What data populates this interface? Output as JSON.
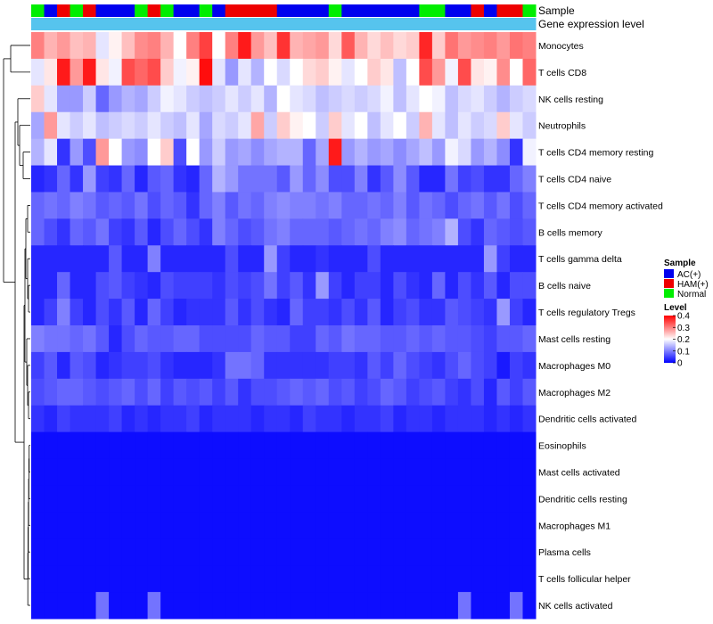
{
  "chart_data": {
    "type": "heatmap",
    "title": "",
    "annotation_labels": {
      "sample": "Sample",
      "gene": "Gene expression level"
    },
    "row_labels": [
      "Monocytes",
      "T cells CD8",
      "NK cells resting",
      "Neutrophils",
      "T cells CD4 memory resting",
      "T cells CD4 naive",
      "T cells CD4 memory activated",
      "B cells memory",
      "T cells gamma delta",
      "B cells naive",
      "T cells regulatory  Tregs",
      "Mast cells resting",
      "Macrophages M0",
      "Macrophages M2",
      "Dendritic cells activated",
      "Eosinophils",
      "Mast cells activated",
      "Dendritic cells resting",
      "Macrophages M1",
      "Plasma cells",
      "T cells follicular helper",
      "NK cells activated"
    ],
    "sample_groups": [
      "Normal",
      "AC(+)",
      "HAM(+)",
      "Normal",
      "HAM(+)",
      "AC(+)",
      "AC(+)",
      "AC(+)",
      "Normal",
      "HAM(+)",
      "Normal",
      "AC(+)",
      "AC(+)",
      "Normal",
      "AC(+)",
      "HAM(+)",
      "HAM(+)",
      "HAM(+)",
      "HAM(+)",
      "AC(+)",
      "AC(+)",
      "AC(+)",
      "AC(+)",
      "Normal",
      "AC(+)",
      "AC(+)",
      "AC(+)",
      "AC(+)",
      "AC(+)",
      "AC(+)",
      "Normal",
      "Normal",
      "AC(+)",
      "AC(+)",
      "HAM(+)",
      "AC(+)",
      "HAM(+)",
      "HAM(+)",
      "Normal"
    ],
    "gene_expression_level": [
      0.35,
      0.35,
      0.35,
      0.35,
      0.35,
      0.35,
      0.35,
      0.35,
      0.35,
      0.35,
      0.35,
      0.35,
      0.35,
      0.35,
      0.35,
      0.35,
      0.35,
      0.35,
      0.35,
      0.35,
      0.35,
      0.35,
      0.35,
      0.35,
      0.35,
      0.35,
      0.35,
      0.35,
      0.35,
      0.35,
      0.35,
      0.35,
      0.35,
      0.35,
      0.35,
      0.35,
      0.35,
      0.35,
      0.35
    ],
    "values": [
      [
        0.3,
        0.26,
        0.28,
        0.25,
        0.26,
        0.18,
        0.21,
        0.25,
        0.29,
        0.3,
        0.26,
        0.2,
        0.3,
        0.35,
        0.2,
        0.3,
        0.38,
        0.28,
        0.25,
        0.36,
        0.26,
        0.27,
        0.28,
        0.23,
        0.33,
        0.26,
        0.23,
        0.25,
        0.23,
        0.24,
        0.37,
        0.24,
        0.31,
        0.28,
        0.29,
        0.3,
        0.28,
        0.31,
        0.3
      ],
      [
        0.18,
        0.22,
        0.38,
        0.28,
        0.38,
        0.22,
        0.19,
        0.34,
        0.32,
        0.34,
        0.24,
        0.19,
        0.21,
        0.39,
        0.18,
        0.12,
        0.18,
        0.14,
        0.2,
        0.17,
        0.2,
        0.23,
        0.24,
        0.21,
        0.18,
        0.2,
        0.24,
        0.22,
        0.15,
        0.2,
        0.34,
        0.28,
        0.19,
        0.34,
        0.22,
        0.21,
        0.29,
        0.2,
        0.32
      ],
      [
        0.24,
        0.18,
        0.12,
        0.12,
        0.16,
        0.08,
        0.12,
        0.14,
        0.13,
        0.16,
        0.19,
        0.18,
        0.16,
        0.15,
        0.16,
        0.18,
        0.16,
        0.18,
        0.14,
        0.2,
        0.18,
        0.17,
        0.15,
        0.16,
        0.17,
        0.16,
        0.17,
        0.19,
        0.15,
        0.18,
        0.2,
        0.19,
        0.15,
        0.17,
        0.18,
        0.16,
        0.14,
        0.16,
        0.17
      ],
      [
        0.13,
        0.28,
        0.18,
        0.16,
        0.18,
        0.15,
        0.16,
        0.17,
        0.16,
        0.18,
        0.16,
        0.15,
        0.18,
        0.13,
        0.17,
        0.16,
        0.18,
        0.27,
        0.16,
        0.24,
        0.21,
        0.2,
        0.16,
        0.24,
        0.18,
        0.2,
        0.15,
        0.18,
        0.2,
        0.16,
        0.26,
        0.18,
        0.15,
        0.18,
        0.16,
        0.17,
        0.24,
        0.18,
        0.16
      ],
      [
        0.14,
        0.18,
        0.04,
        0.12,
        0.06,
        0.28,
        0.2,
        0.12,
        0.11,
        0.2,
        0.24,
        0.06,
        0.2,
        0.12,
        0.16,
        0.12,
        0.13,
        0.11,
        0.13,
        0.14,
        0.14,
        0.08,
        0.13,
        0.38,
        0.12,
        0.14,
        0.12,
        0.13,
        0.11,
        0.13,
        0.15,
        0.12,
        0.19,
        0.17,
        0.12,
        0.14,
        0.11,
        0.04,
        0.19
      ],
      [
        0.03,
        0.04,
        0.08,
        0.04,
        0.12,
        0.05,
        0.04,
        0.08,
        0.03,
        0.07,
        0.08,
        0.04,
        0.03,
        0.08,
        0.14,
        0.12,
        0.09,
        0.09,
        0.09,
        0.07,
        0.12,
        0.08,
        0.11,
        0.06,
        0.06,
        0.1,
        0.04,
        0.07,
        0.11,
        0.07,
        0.03,
        0.03,
        0.09,
        0.05,
        0.06,
        0.04,
        0.04,
        0.08,
        0.1
      ],
      [
        0.08,
        0.09,
        0.08,
        0.1,
        0.09,
        0.07,
        0.08,
        0.07,
        0.09,
        0.06,
        0.08,
        0.07,
        0.04,
        0.08,
        0.1,
        0.07,
        0.09,
        0.08,
        0.1,
        0.11,
        0.1,
        0.1,
        0.09,
        0.1,
        0.08,
        0.08,
        0.09,
        0.08,
        0.1,
        0.07,
        0.09,
        0.08,
        0.06,
        0.08,
        0.09,
        0.07,
        0.09,
        0.06,
        0.08
      ],
      [
        0.08,
        0.06,
        0.04,
        0.08,
        0.07,
        0.09,
        0.05,
        0.04,
        0.07,
        0.03,
        0.06,
        0.08,
        0.06,
        0.04,
        0.1,
        0.08,
        0.06,
        0.07,
        0.09,
        0.1,
        0.08,
        0.08,
        0.08,
        0.07,
        0.08,
        0.09,
        0.08,
        0.1,
        0.11,
        0.08,
        0.09,
        0.1,
        0.14,
        0.06,
        0.04,
        0.08,
        0.07,
        0.06,
        0.07
      ],
      [
        0.03,
        0.03,
        0.03,
        0.03,
        0.03,
        0.03,
        0.07,
        0.03,
        0.03,
        0.1,
        0.03,
        0.03,
        0.03,
        0.03,
        0.03,
        0.06,
        0.03,
        0.03,
        0.12,
        0.05,
        0.03,
        0.03,
        0.04,
        0.03,
        0.03,
        0.03,
        0.06,
        0.03,
        0.03,
        0.03,
        0.03,
        0.03,
        0.03,
        0.03,
        0.03,
        0.12,
        0.05,
        0.03,
        0.03
      ],
      [
        0.03,
        0.03,
        0.08,
        0.03,
        0.03,
        0.06,
        0.07,
        0.05,
        0.04,
        0.03,
        0.06,
        0.05,
        0.05,
        0.05,
        0.04,
        0.06,
        0.05,
        0.06,
        0.09,
        0.05,
        0.07,
        0.04,
        0.12,
        0.05,
        0.03,
        0.05,
        0.05,
        0.03,
        0.06,
        0.04,
        0.03,
        0.08,
        0.03,
        0.06,
        0.04,
        0.07,
        0.03,
        0.06,
        0.06
      ],
      [
        0.03,
        0.05,
        0.1,
        0.05,
        0.03,
        0.06,
        0.04,
        0.07,
        0.03,
        0.08,
        0.05,
        0.03,
        0.04,
        0.04,
        0.04,
        0.07,
        0.04,
        0.06,
        0.04,
        0.03,
        0.08,
        0.05,
        0.05,
        0.04,
        0.06,
        0.04,
        0.07,
        0.03,
        0.05,
        0.06,
        0.04,
        0.04,
        0.07,
        0.06,
        0.05,
        0.04,
        0.12,
        0.05,
        0.03
      ],
      [
        0.1,
        0.09,
        0.09,
        0.08,
        0.09,
        0.07,
        0.03,
        0.06,
        0.08,
        0.07,
        0.07,
        0.08,
        0.08,
        0.06,
        0.06,
        0.06,
        0.06,
        0.08,
        0.07,
        0.07,
        0.05,
        0.05,
        0.08,
        0.07,
        0.09,
        0.08,
        0.08,
        0.07,
        0.07,
        0.08,
        0.07,
        0.08,
        0.07,
        0.07,
        0.06,
        0.05,
        0.07,
        0.07,
        0.08
      ],
      [
        0.05,
        0.07,
        0.03,
        0.07,
        0.06,
        0.03,
        0.04,
        0.05,
        0.05,
        0.06,
        0.04,
        0.03,
        0.03,
        0.03,
        0.04,
        0.09,
        0.09,
        0.08,
        0.04,
        0.04,
        0.04,
        0.04,
        0.04,
        0.05,
        0.05,
        0.04,
        0.07,
        0.05,
        0.08,
        0.06,
        0.05,
        0.04,
        0.06,
        0.08,
        0.06,
        0.05,
        0.02,
        0.05,
        0.04
      ],
      [
        0.06,
        0.07,
        0.08,
        0.08,
        0.07,
        0.06,
        0.07,
        0.08,
        0.06,
        0.08,
        0.05,
        0.07,
        0.06,
        0.07,
        0.05,
        0.07,
        0.04,
        0.06,
        0.06,
        0.07,
        0.08,
        0.07,
        0.08,
        0.06,
        0.07,
        0.05,
        0.06,
        0.08,
        0.07,
        0.05,
        0.06,
        0.07,
        0.05,
        0.04,
        0.06,
        0.03,
        0.07,
        0.05,
        0.07
      ],
      [
        0.04,
        0.03,
        0.05,
        0.04,
        0.04,
        0.04,
        0.05,
        0.03,
        0.04,
        0.03,
        0.04,
        0.04,
        0.05,
        0.03,
        0.04,
        0.04,
        0.04,
        0.03,
        0.04,
        0.04,
        0.03,
        0.05,
        0.04,
        0.04,
        0.03,
        0.04,
        0.04,
        0.05,
        0.03,
        0.04,
        0.04,
        0.03,
        0.04,
        0.04,
        0.04,
        0.03,
        0.04,
        0.03,
        0.04
      ],
      [
        0.01,
        0.01,
        0.01,
        0.01,
        0.01,
        0.01,
        0.01,
        0.01,
        0.01,
        0.01,
        0.01,
        0.01,
        0.01,
        0.01,
        0.01,
        0.01,
        0.01,
        0.01,
        0.01,
        0.01,
        0.01,
        0.01,
        0.01,
        0.01,
        0.01,
        0.01,
        0.01,
        0.01,
        0.01,
        0.01,
        0.01,
        0.01,
        0.01,
        0.01,
        0.01,
        0.01,
        0.01,
        0.01,
        0.01
      ],
      [
        0.01,
        0.01,
        0.01,
        0.01,
        0.01,
        0.01,
        0.01,
        0.01,
        0.01,
        0.01,
        0.01,
        0.01,
        0.01,
        0.01,
        0.01,
        0.01,
        0.01,
        0.01,
        0.01,
        0.01,
        0.01,
        0.01,
        0.01,
        0.01,
        0.01,
        0.01,
        0.01,
        0.01,
        0.01,
        0.01,
        0.01,
        0.01,
        0.01,
        0.01,
        0.01,
        0.01,
        0.01,
        0.01,
        0.01
      ],
      [
        0.01,
        0.01,
        0.01,
        0.01,
        0.01,
        0.01,
        0.01,
        0.01,
        0.01,
        0.01,
        0.01,
        0.01,
        0.01,
        0.01,
        0.01,
        0.01,
        0.01,
        0.01,
        0.01,
        0.01,
        0.01,
        0.01,
        0.01,
        0.01,
        0.01,
        0.01,
        0.01,
        0.01,
        0.01,
        0.01,
        0.01,
        0.01,
        0.01,
        0.01,
        0.01,
        0.01,
        0.01,
        0.01,
        0.01
      ],
      [
        0.01,
        0.01,
        0.01,
        0.01,
        0.01,
        0.01,
        0.01,
        0.01,
        0.01,
        0.01,
        0.01,
        0.01,
        0.01,
        0.01,
        0.01,
        0.01,
        0.01,
        0.01,
        0.01,
        0.01,
        0.01,
        0.01,
        0.01,
        0.01,
        0.01,
        0.01,
        0.01,
        0.01,
        0.01,
        0.01,
        0.01,
        0.01,
        0.01,
        0.01,
        0.01,
        0.01,
        0.01,
        0.01,
        0.01
      ],
      [
        0.01,
        0.01,
        0.01,
        0.01,
        0.01,
        0.01,
        0.01,
        0.01,
        0.01,
        0.01,
        0.01,
        0.01,
        0.01,
        0.01,
        0.01,
        0.01,
        0.01,
        0.01,
        0.01,
        0.01,
        0.01,
        0.01,
        0.01,
        0.01,
        0.01,
        0.01,
        0.01,
        0.01,
        0.01,
        0.01,
        0.01,
        0.01,
        0.01,
        0.01,
        0.01,
        0.01,
        0.01,
        0.01,
        0.01
      ],
      [
        0.01,
        0.01,
        0.01,
        0.01,
        0.01,
        0.01,
        0.01,
        0.01,
        0.01,
        0.01,
        0.01,
        0.01,
        0.01,
        0.01,
        0.01,
        0.01,
        0.01,
        0.01,
        0.01,
        0.01,
        0.01,
        0.01,
        0.01,
        0.01,
        0.01,
        0.01,
        0.01,
        0.01,
        0.01,
        0.01,
        0.01,
        0.01,
        0.01,
        0.01,
        0.01,
        0.01,
        0.01,
        0.01,
        0.01
      ],
      [
        0.01,
        0.01,
        0.01,
        0.01,
        0.01,
        0.09,
        0.01,
        0.01,
        0.01,
        0.09,
        0.01,
        0.01,
        0.01,
        0.01,
        0.01,
        0.01,
        0.01,
        0.01,
        0.01,
        0.01,
        0.01,
        0.01,
        0.01,
        0.01,
        0.01,
        0.01,
        0.01,
        0.01,
        0.01,
        0.01,
        0.01,
        0.01,
        0.01,
        0.09,
        0.01,
        0.01,
        0.01,
        0.09,
        0.01
      ]
    ],
    "color_scale": {
      "low": "#0000ff",
      "mid": "#ffffff",
      "high": "#ff0000",
      "domain": [
        0,
        0.2,
        0.4
      ]
    },
    "group_colors": {
      "AC(+)": "#0000ee",
      "HAM(+)": "#ee0000",
      "Normal": "#00ee00"
    },
    "gene_level_color": "#56c4ee",
    "legend": {
      "sample_title": "Sample",
      "sample_items": [
        "AC(+)",
        "HAM(+)",
        "Normal"
      ],
      "level_title": "Level",
      "level_ticks": [
        "0.4",
        "0.3",
        "0.2",
        "0.1",
        "0"
      ],
      "level_tick_values": [
        0.4,
        0.3,
        0.2,
        0.1,
        0
      ]
    }
  }
}
